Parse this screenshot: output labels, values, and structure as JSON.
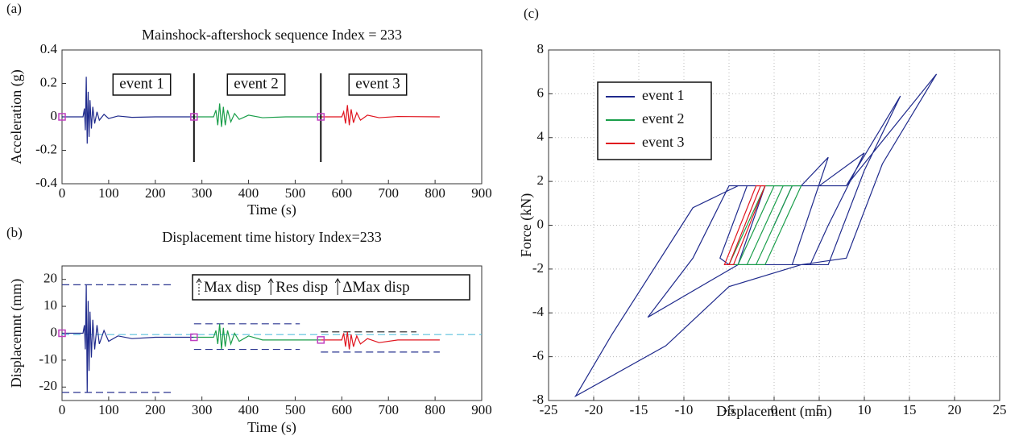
{
  "chart_data": [
    {
      "type": "line",
      "panel": "(a)",
      "title": "Mainshock-aftershock sequence Index = 233",
      "x_label": "Time (s)",
      "y_label": "Acceleration (g)",
      "xlim": [
        0,
        900
      ],
      "xticks": [
        0,
        100,
        200,
        300,
        400,
        500,
        600,
        700,
        800,
        900
      ],
      "ylim": [
        -0.4,
        0.4
      ],
      "yticks": [
        -0.4,
        -0.2,
        0,
        0.2,
        0.4
      ],
      "annotations": [
        "event 1",
        "event 2",
        "event 3"
      ],
      "separators": {
        "x": [
          283,
          555
        ],
        "ymin": -0.27,
        "ymax": 0.26
      },
      "markers": {
        "color": "#c03fc0",
        "x": [
          0,
          283,
          555
        ],
        "values": [
          0,
          0,
          0
        ]
      },
      "series": [
        {
          "name": "event 1",
          "color": "#1f2a8c",
          "x": [
            0,
            45,
            48,
            50,
            52,
            54,
            56,
            58,
            60,
            63,
            66,
            70,
            75,
            80,
            90,
            100,
            120,
            150,
            200,
            283
          ],
          "values": [
            0,
            0,
            0.05,
            -0.08,
            0.24,
            -0.16,
            0.15,
            -0.12,
            0.1,
            -0.07,
            0.06,
            -0.04,
            0.03,
            -0.02,
            0.015,
            -0.01,
            0.005,
            -0.003,
            0,
            0
          ]
        },
        {
          "name": "event 2",
          "color": "#1a9e4a",
          "x": [
            283,
            325,
            330,
            334,
            338,
            342,
            346,
            350,
            355,
            362,
            370,
            380,
            400,
            430,
            480,
            555
          ],
          "values": [
            0,
            0,
            0.04,
            -0.05,
            0.08,
            -0.06,
            0.06,
            -0.05,
            0.04,
            -0.03,
            0.02,
            -0.015,
            0.01,
            -0.005,
            0,
            0
          ]
        },
        {
          "name": "event 3",
          "color": "#e0141e",
          "x": [
            555,
            600,
            604,
            608,
            612,
            616,
            620,
            625,
            632,
            640,
            655,
            680,
            720,
            810
          ],
          "values": [
            0,
            0,
            0.03,
            -0.04,
            0.07,
            -0.05,
            0.045,
            -0.035,
            0.025,
            -0.02,
            0.01,
            -0.005,
            0.002,
            0
          ]
        }
      ]
    },
    {
      "type": "line",
      "panel": "(b)",
      "title": "Displacement time history Index=233",
      "x_label": "Time (s)",
      "y_label": "Displacemnt (mm)",
      "xlim": [
        0,
        900
      ],
      "xticks": [
        0,
        100,
        200,
        300,
        400,
        500,
        600,
        700,
        800,
        900
      ],
      "ylim": [
        -25,
        25
      ],
      "yticks": [
        -20,
        -10,
        0,
        10,
        20
      ],
      "legend": [
        "Max disp",
        "Res disp",
        "ΔMax disp"
      ],
      "markers": {
        "color": "#c03fc0",
        "x": [
          0,
          283,
          555
        ],
        "values": [
          0,
          -1.5,
          -2.5
        ]
      },
      "reference_lines": [
        {
          "color": "#5bc0de",
          "y": -0.5,
          "x": [
            0,
            900
          ]
        },
        {
          "color": "#2a3590",
          "y": 18,
          "x": [
            0,
            240
          ]
        },
        {
          "color": "#2a3590",
          "y": -22,
          "x": [
            0,
            240
          ]
        },
        {
          "color": "#2a3590",
          "y": 3.5,
          "x": [
            283,
            510
          ]
        },
        {
          "color": "#2a3590",
          "y": -6,
          "x": [
            283,
            510
          ]
        },
        {
          "color": "#222222",
          "y": 0.5,
          "x": [
            555,
            760
          ]
        },
        {
          "color": "#2a3590",
          "y": -7,
          "x": [
            555,
            810
          ]
        }
      ],
      "series": [
        {
          "name": "event 1",
          "color": "#1f2a8c",
          "x": [
            0,
            45,
            48,
            50,
            52,
            54,
            56,
            58,
            60,
            63,
            66,
            70,
            75,
            80,
            90,
            100,
            120,
            150,
            200,
            283
          ],
          "values": [
            0,
            0,
            3,
            -6,
            18,
            -22,
            12,
            -14,
            8,
            -9,
            5,
            -6,
            3,
            -4,
            1,
            -3,
            -1,
            -2,
            -1.5,
            -1.5
          ]
        },
        {
          "name": "event 2",
          "color": "#1a9e4a",
          "x": [
            283,
            325,
            330,
            334,
            338,
            342,
            346,
            350,
            355,
            362,
            370,
            380,
            400,
            430,
            480,
            555
          ],
          "values": [
            -1.5,
            -1.5,
            1,
            -4,
            3.5,
            -6,
            2,
            -5,
            1,
            -4,
            0,
            -3,
            -1,
            -2.5,
            -2.5,
            -2.5
          ]
        },
        {
          "name": "event 3",
          "color": "#e0141e",
          "x": [
            555,
            600,
            604,
            608,
            612,
            616,
            620,
            625,
            632,
            640,
            655,
            680,
            720,
            810
          ],
          "values": [
            -2.5,
            -2.5,
            0,
            -5,
            0.5,
            -6,
            -0.5,
            -5,
            -1,
            -4,
            -2,
            -3.5,
            -2.5,
            -2.5
          ]
        }
      ]
    },
    {
      "type": "line",
      "panel": "(c)",
      "x_label": "Displacement (mm)",
      "y_label": "Force (kN)",
      "xlim": [
        -25,
        25
      ],
      "xticks": [
        -25,
        -20,
        -15,
        -10,
        -5,
        0,
        5,
        10,
        15,
        20,
        25
      ],
      "ylim": [
        -8,
        8
      ],
      "yticks": [
        -8,
        -6,
        -4,
        -2,
        0,
        2,
        4,
        6,
        8
      ],
      "grid": true,
      "series": [
        {
          "name": "event 1",
          "color": "#1f2a8c",
          "x": [
            0,
            2,
            8,
            14,
            10,
            6,
            -4,
            -14,
            -9,
            -5,
            8,
            18,
            12,
            8,
            3,
            -5,
            -12,
            -22,
            -18,
            -9,
            -4,
            5,
            10,
            6,
            4,
            -5,
            -6,
            -3,
            3,
            6,
            2,
            -4,
            -1
          ],
          "values": [
            0,
            1.8,
            1.8,
            5.9,
            2.5,
            -1.8,
            -1.8,
            -4.2,
            -1.5,
            1.8,
            1.8,
            6.9,
            2.8,
            -1.5,
            -1.8,
            -2.8,
            -5.5,
            -7.8,
            -5,
            0.8,
            1.8,
            1.8,
            3.3,
            0,
            -1.8,
            -1.8,
            -1.5,
            1.8,
            1.8,
            3.1,
            -1.8,
            -1.8,
            1.8
          ]
        },
        {
          "name": "event 2",
          "color": "#1a9e4a",
          "x": [
            -1,
            3,
            -1,
            -5,
            -1,
            2,
            -2,
            -4,
            0,
            1,
            -3,
            -5,
            -1
          ],
          "values": [
            1.8,
            1.8,
            -1.8,
            -1.8,
            1.8,
            1.8,
            -1.8,
            -1.8,
            1.8,
            1.8,
            -1.8,
            -1.8,
            1.8
          ]
        },
        {
          "name": "event 3",
          "color": "#e0141e",
          "x": [
            -2,
            -1,
            -4.5,
            -5.5,
            -2,
            -1.5,
            -5
          ],
          "values": [
            1.8,
            1.8,
            -1.8,
            -1.8,
            1.8,
            1.8,
            -1.8
          ]
        }
      ]
    }
  ]
}
